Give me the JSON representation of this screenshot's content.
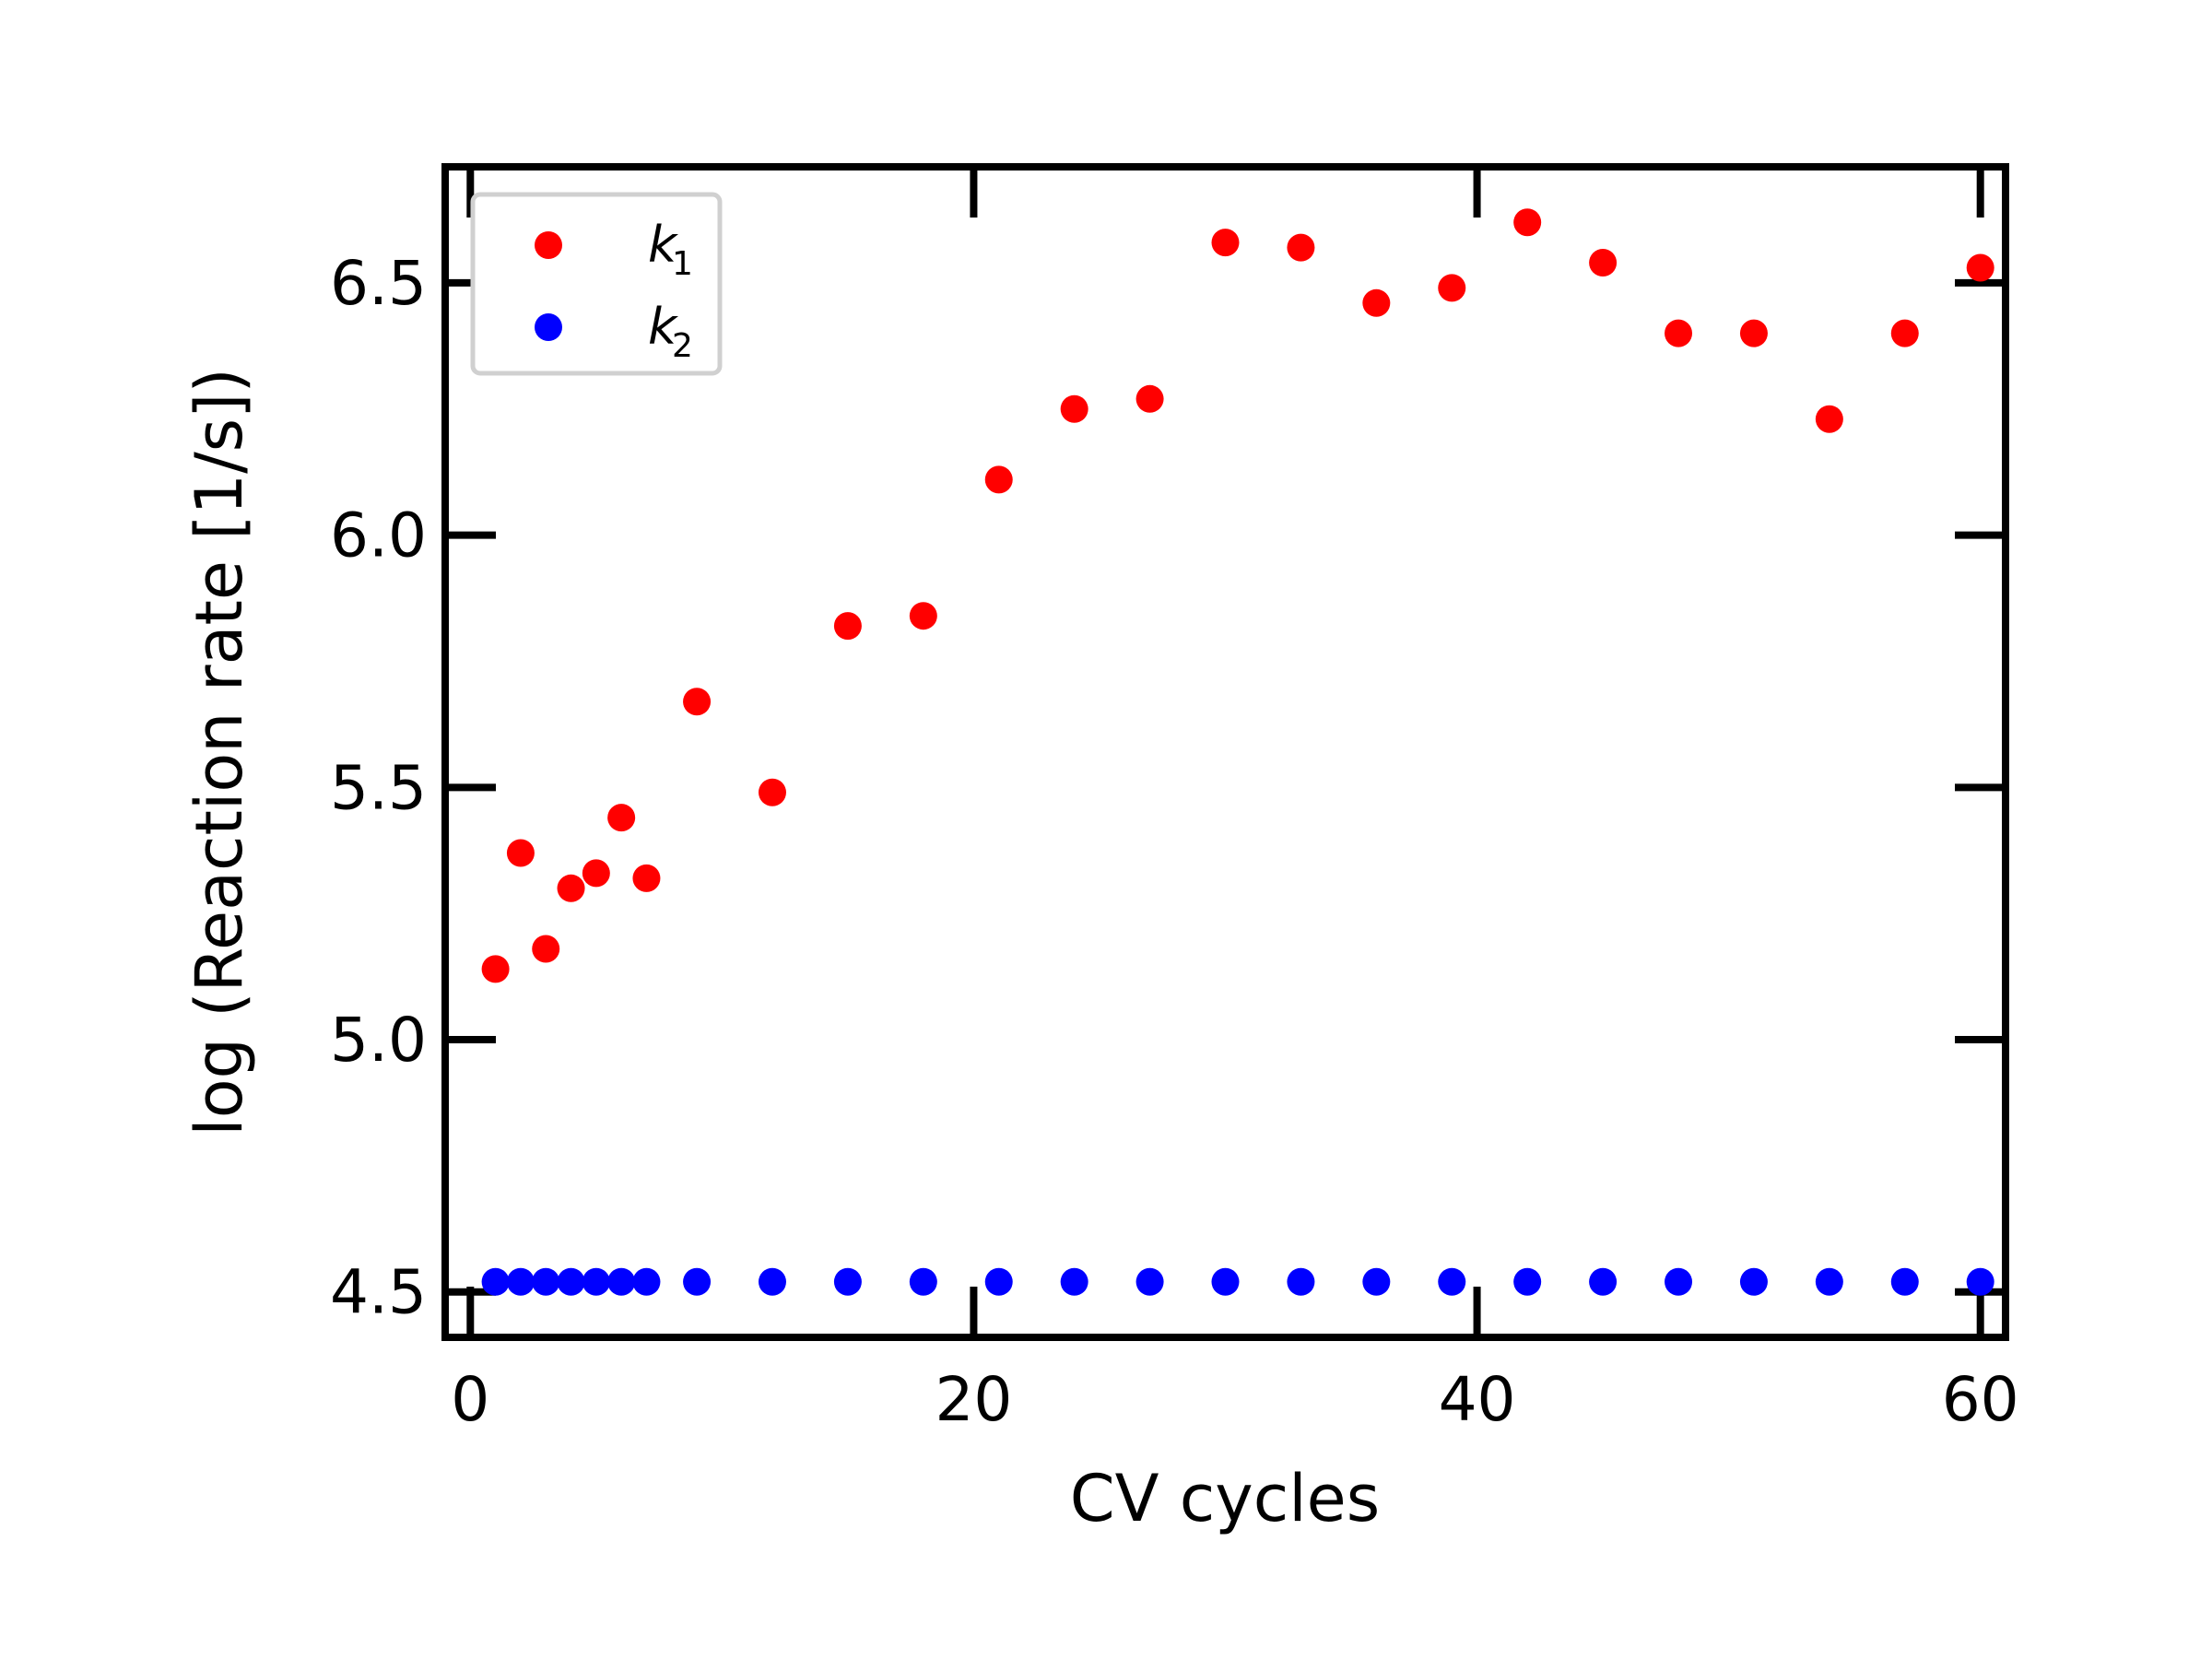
{
  "chart_data": {
    "type": "scatter",
    "title": "",
    "xlabel": "CV cycles",
    "ylabel": "log (Reaction rate [1/s])",
    "xlim": [
      -1,
      61
    ],
    "ylim": [
      4.41,
      6.73
    ],
    "xticks": [
      0,
      20,
      40,
      60
    ],
    "xtick_labels": [
      "0",
      "20",
      "40",
      "60"
    ],
    "yticks": [
      4.5,
      5.0,
      5.5,
      6.0,
      6.5
    ],
    "ytick_labels": [
      "4.5",
      "5.0",
      "5.5",
      "6.0",
      "6.5"
    ],
    "grid": false,
    "legend_position": "top-left",
    "series": [
      {
        "name": "k",
        "subscript": "1",
        "color": "#ff0000",
        "x": [
          1,
          2,
          3,
          4,
          5,
          6,
          7,
          9,
          12,
          15,
          18,
          21,
          24,
          27,
          30,
          33,
          36,
          39,
          42,
          45,
          48,
          51,
          54,
          57,
          60
        ],
        "y": [
          5.14,
          5.37,
          5.18,
          5.3,
          5.33,
          5.44,
          5.32,
          5.67,
          5.49,
          5.82,
          5.84,
          6.11,
          6.25,
          6.27,
          6.58,
          6.57,
          6.46,
          6.49,
          6.62,
          6.54,
          6.4,
          6.4,
          6.23,
          6.4,
          6.53
        ]
      },
      {
        "name": "k",
        "subscript": "2",
        "color": "#0000ff",
        "x": [
          1,
          2,
          3,
          4,
          5,
          6,
          7,
          9,
          12,
          15,
          18,
          21,
          24,
          27,
          30,
          33,
          36,
          39,
          42,
          45,
          48,
          51,
          54,
          57,
          60
        ],
        "y": [
          4.52,
          4.52,
          4.52,
          4.52,
          4.52,
          4.52,
          4.52,
          4.52,
          4.52,
          4.52,
          4.52,
          4.52,
          4.52,
          4.52,
          4.52,
          4.52,
          4.52,
          4.52,
          4.52,
          4.52,
          4.52,
          4.52,
          4.52,
          4.52,
          4.52
        ]
      }
    ]
  }
}
